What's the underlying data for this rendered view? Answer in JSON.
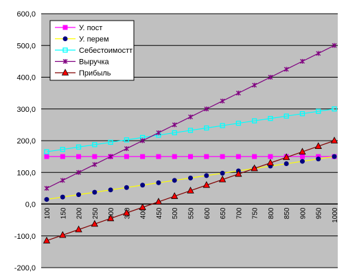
{
  "chart_data": {
    "type": "line",
    "title": "",
    "xlabel": "",
    "ylabel": "",
    "x": [
      100,
      150,
      200,
      250,
      300,
      350,
      400,
      450,
      500,
      550,
      600,
      650,
      700,
      750,
      800,
      850,
      900,
      950,
      1000
    ],
    "x_tick_labels": [
      "100",
      "150",
      "200",
      "250",
      "300",
      "350",
      "400",
      "450",
      "500",
      "550",
      "600",
      "650",
      "700",
      "750",
      "800",
      "850",
      "900",
      "950",
      "1000"
    ],
    "y_tick_labels": [
      "600,0",
      "500,0",
      "400,0",
      "300,0",
      "200,0",
      "100,0",
      "0,0",
      "-100,0",
      "-200,0"
    ],
    "ylim": [
      -200,
      600
    ],
    "grid": "horizontal",
    "legend_position": "top-left",
    "plot_background": "#c0c0c0",
    "series": [
      {
        "name": "У. пост",
        "color": "#ff00ff",
        "marker": "square",
        "values": [
          150,
          150,
          150,
          150,
          150,
          150,
          150,
          150,
          150,
          150,
          150,
          150,
          150,
          150,
          150,
          150,
          150,
          150,
          150
        ]
      },
      {
        "name": "У. перем",
        "color": "#ffff00",
        "marker_color": "#000080",
        "marker": "circle",
        "values": [
          15,
          22.5,
          30,
          37.5,
          45,
          52.5,
          60,
          67.5,
          75,
          82.5,
          90,
          97.5,
          105,
          112.5,
          120,
          127.5,
          135,
          142.5,
          150
        ]
      },
      {
        "name": "Себестоимостт",
        "color": "#00ffff",
        "marker": "open-square",
        "values": [
          165,
          172.5,
          180,
          187.5,
          195,
          202.5,
          210,
          217.5,
          225,
          232.5,
          240,
          247.5,
          255,
          262.5,
          270,
          277.5,
          285,
          292.5,
          300
        ]
      },
      {
        "name": "Выручка",
        "color": "#800080",
        "marker": "star",
        "values": [
          50,
          75,
          100,
          125,
          150,
          175,
          200,
          225,
          250,
          275,
          300,
          325,
          350,
          375,
          400,
          425,
          450,
          475,
          500
        ]
      },
      {
        "name": "Прибыль",
        "color": "#800000",
        "marker_color": "#ff0000",
        "marker": "triangle",
        "values": [
          -115,
          -97.5,
          -80,
          -62.5,
          -45,
          -27.5,
          -10,
          7.5,
          25,
          42.5,
          60,
          77.5,
          95,
          112.5,
          130,
          147.5,
          165,
          182.5,
          200
        ]
      }
    ]
  }
}
